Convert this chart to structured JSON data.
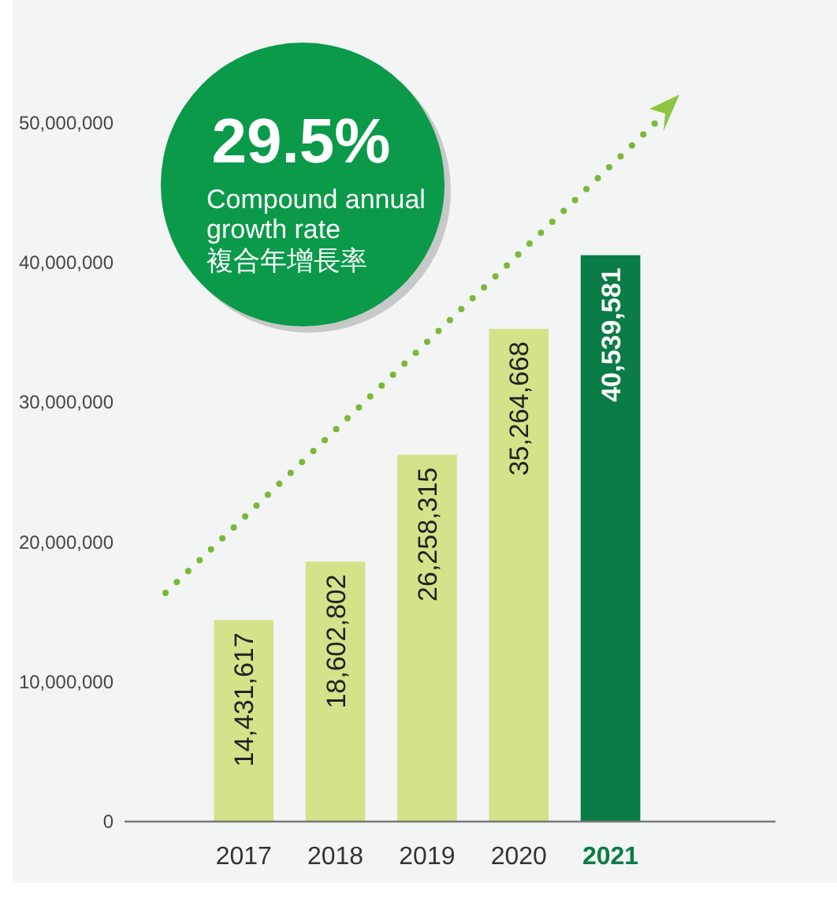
{
  "chart_data": {
    "type": "bar",
    "categories": [
      "2017",
      "2018",
      "2019",
      "2020",
      "2021"
    ],
    "values": [
      14431617,
      18602802,
      26258315,
      35264668,
      40539581
    ],
    "colors": [
      "#d5e28a",
      "#d5e28a",
      "#d5e28a",
      "#d5e28a",
      "#0a7c45"
    ],
    "ylim": [
      0,
      50000000
    ],
    "yticks": [
      {
        "value": 0,
        "label": "0"
      },
      {
        "value": 10000000,
        "label": "10,000,000"
      },
      {
        "value": 20000000,
        "label": "20,000,000"
      },
      {
        "value": 30000000,
        "label": "30,000,000"
      },
      {
        "value": 40000000,
        "label": "40,000,000"
      },
      {
        "value": 50000000,
        "label": "50,000,000"
      }
    ],
    "value_labels": [
      "14,431,617",
      "18,602,802",
      "26,258,315",
      "35,264,668",
      "40,539,581"
    ],
    "grid": false,
    "annotations": [
      "29.5%",
      "Compound annual growth rate",
      "複合年增長率"
    ]
  }
}
